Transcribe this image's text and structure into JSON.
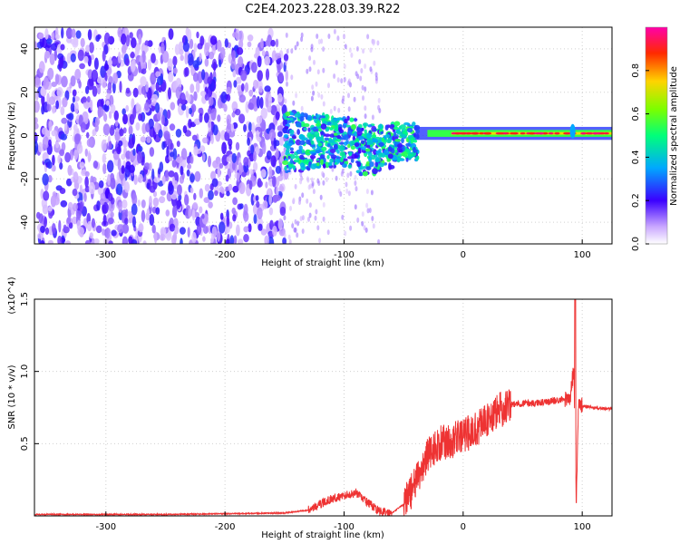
{
  "title": "C2E4.2023.228.03.39.R22",
  "chart_data": [
    {
      "type": "heatmap",
      "xlabel": "Height of straight line (km)",
      "ylabel": "Frequency (Hz)",
      "xlim": [
        -360,
        125
      ],
      "ylim": [
        -50,
        50
      ],
      "x_ticks": [
        -300,
        -200,
        -100,
        0,
        100
      ],
      "y_ticks": [
        -40,
        -20,
        0,
        20,
        40
      ],
      "colorbar": {
        "label": "Normalized spectral amplitude",
        "range": [
          0.0,
          1.0
        ],
        "ticks": [
          "0.0",
          "0.2",
          "0.4",
          "0.6",
          "0.8"
        ]
      },
      "regions": [
        {
          "x_range": [
            -360,
            -150
          ],
          "y_range": [
            -50,
            48
          ],
          "description": "broadband noise, amplitude 0.05-0.25"
        },
        {
          "x_range": [
            -150,
            -40
          ],
          "y_range": [
            -25,
            12
          ],
          "description": "scattered signal, amplitude 0.2-0.55"
        },
        {
          "x_range": [
            -40,
            125
          ],
          "y_range": [
            -2,
            4
          ],
          "center_freq": 1,
          "description": "narrow band, amplitude 0.6-1.0"
        }
      ],
      "grid": true
    },
    {
      "type": "line",
      "xlabel": "Height of straight line (km)",
      "ylabel": "SNR (10 * v/v)",
      "multiplier_label": "(x10^4)",
      "xlim": [
        -360,
        125
      ],
      "ylim": [
        0,
        1.5
      ],
      "x_ticks": [
        -300,
        -200,
        -100,
        0,
        100
      ],
      "y_ticks": [
        0.5,
        1.0,
        1.5
      ],
      "color": "#ee3333",
      "series": [
        {
          "x": [
            -360,
            -300,
            -250,
            -200,
            -150,
            -130,
            -120,
            -110,
            -100,
            -90,
            -80,
            -70,
            -60,
            -50,
            -40,
            -30,
            -20,
            -10,
            0,
            10,
            20,
            30,
            40,
            50,
            60,
            70,
            80,
            90,
            93,
            95,
            97,
            100,
            110,
            125
          ],
          "y": [
            0.01,
            0.01,
            0.01,
            0.015,
            0.02,
            0.04,
            0.08,
            0.12,
            0.14,
            0.16,
            0.09,
            0.03,
            0.02,
            0.08,
            0.22,
            0.42,
            0.5,
            0.52,
            0.55,
            0.6,
            0.66,
            0.73,
            0.77,
            0.78,
            0.78,
            0.79,
            0.8,
            0.82,
            1.02,
            0.08,
            0.8,
            0.76,
            0.75,
            0.74
          ]
        }
      ],
      "grid": true
    }
  ]
}
